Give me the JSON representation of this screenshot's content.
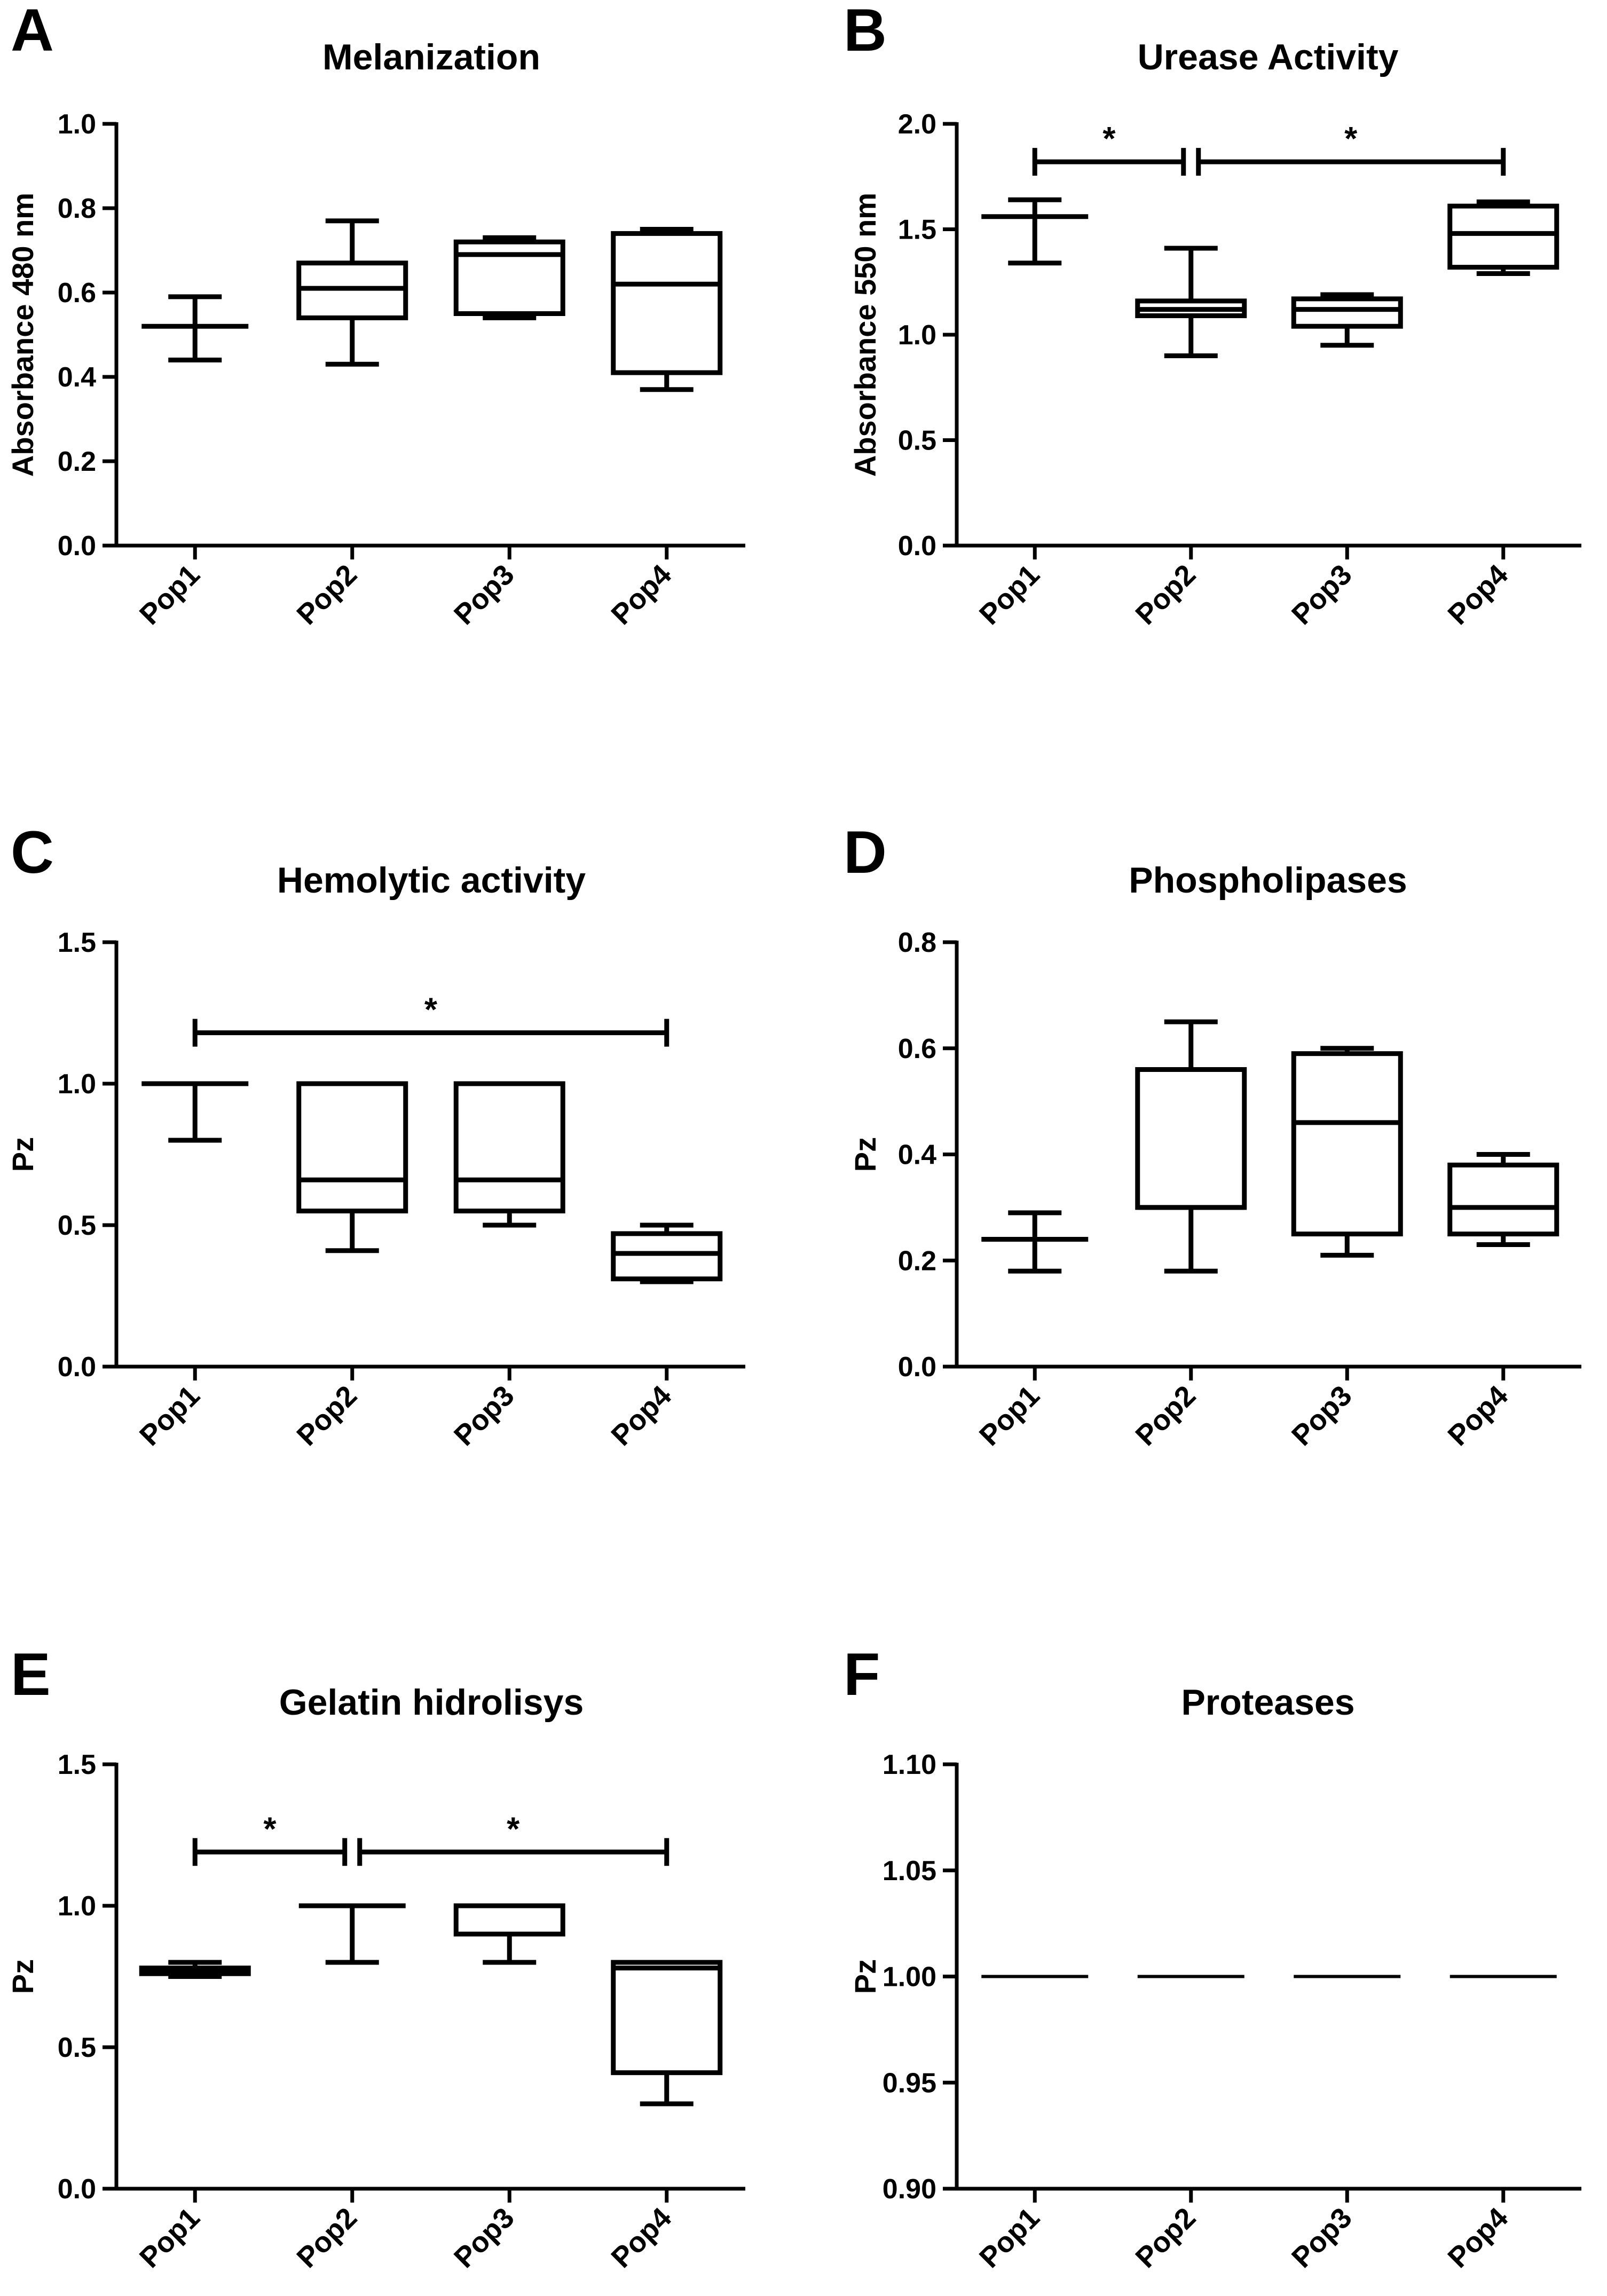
{
  "chart_data": [
    {
      "panel": "A",
      "type": "box",
      "title": "Melanization",
      "ylabel": "Absorbance 480 nm",
      "xlabel": "",
      "ylim": [
        0,
        1.0
      ],
      "yticks": [
        0.0,
        0.2,
        0.4,
        0.6,
        0.8,
        1.0
      ],
      "ytick_labels": [
        "0.0",
        "0.2",
        "0.4",
        "0.6",
        "0.8",
        "1.0"
      ],
      "categories": [
        "Pop1",
        "Pop2",
        "Pop3",
        "Pop4"
      ],
      "boxes": [
        {
          "min": 0.44,
          "q1": 0.52,
          "median": 0.52,
          "q3": 0.52,
          "max": 0.59
        },
        {
          "min": 0.43,
          "q1": 0.54,
          "median": 0.61,
          "q3": 0.67,
          "max": 0.77
        },
        {
          "min": 0.54,
          "q1": 0.55,
          "median": 0.69,
          "q3": 0.72,
          "max": 0.73
        },
        {
          "min": 0.37,
          "q1": 0.41,
          "median": 0.62,
          "q3": 0.74,
          "max": 0.75
        }
      ],
      "significance": []
    },
    {
      "panel": "B",
      "type": "box",
      "title": "Urease Activity",
      "ylabel": "Absorbance 550 nm",
      "xlabel": "",
      "ylim": [
        0,
        2.0
      ],
      "yticks": [
        0.0,
        0.5,
        1.0,
        1.5,
        2.0
      ],
      "ytick_labels": [
        "0.0",
        "0.5",
        "1.0",
        "1.5",
        "2.0"
      ],
      "categories": [
        "Pop1",
        "Pop2",
        "Pop3",
        "Pop4"
      ],
      "boxes": [
        {
          "min": 1.34,
          "q1": 1.56,
          "median": 1.56,
          "q3": 1.56,
          "max": 1.64
        },
        {
          "min": 0.9,
          "q1": 1.09,
          "median": 1.12,
          "q3": 1.16,
          "max": 1.41
        },
        {
          "min": 0.95,
          "q1": 1.04,
          "median": 1.12,
          "q3": 1.17,
          "max": 1.19
        },
        {
          "min": 1.29,
          "q1": 1.32,
          "median": 1.48,
          "q3": 1.61,
          "max": 1.63
        }
      ],
      "significance": [
        {
          "from": 0,
          "to": 1,
          "y": 1.82,
          "label": "*",
          "side": "left"
        },
        {
          "from": 1,
          "to": 3,
          "y": 1.82,
          "label": "*",
          "side": "right"
        }
      ]
    },
    {
      "panel": "C",
      "type": "box",
      "title": "Hemolytic activity",
      "ylabel": "Pz",
      "xlabel": "",
      "ylim": [
        0,
        1.5
      ],
      "yticks": [
        0.0,
        0.5,
        1.0,
        1.5
      ],
      "ytick_labels": [
        "0.0",
        "0.5",
        "1.0",
        "1.5"
      ],
      "categories": [
        "Pop1",
        "Pop2",
        "Pop3",
        "Pop4"
      ],
      "boxes": [
        {
          "min": 0.8,
          "q1": 1.0,
          "median": 1.0,
          "q3": 1.0,
          "max": 1.0
        },
        {
          "min": 0.41,
          "q1": 0.55,
          "median": 0.66,
          "q3": 1.0,
          "max": 1.0
        },
        {
          "min": 0.5,
          "q1": 0.55,
          "median": 0.66,
          "q3": 1.0,
          "max": 1.0
        },
        {
          "min": 0.3,
          "q1": 0.31,
          "median": 0.4,
          "q3": 0.47,
          "max": 0.5
        }
      ],
      "significance": [
        {
          "from": 0,
          "to": 3,
          "y": 1.18,
          "label": "*",
          "side": "full"
        }
      ]
    },
    {
      "panel": "D",
      "type": "box",
      "title": "Phospholipases",
      "ylabel": "Pz",
      "xlabel": "",
      "ylim": [
        0,
        0.8
      ],
      "yticks": [
        0.0,
        0.2,
        0.4,
        0.6,
        0.8
      ],
      "ytick_labels": [
        "0.0",
        "0.2",
        "0.4",
        "0.6",
        "0.8"
      ],
      "categories": [
        "Pop1",
        "Pop2",
        "Pop3",
        "Pop4"
      ],
      "boxes": [
        {
          "min": 0.18,
          "q1": 0.24,
          "median": 0.24,
          "q3": 0.24,
          "max": 0.29
        },
        {
          "min": 0.18,
          "q1": 0.3,
          "median": 0.3,
          "q3": 0.56,
          "max": 0.65
        },
        {
          "min": 0.21,
          "q1": 0.25,
          "median": 0.46,
          "q3": 0.59,
          "max": 0.6
        },
        {
          "min": 0.23,
          "q1": 0.25,
          "median": 0.3,
          "q3": 0.38,
          "max": 0.4
        }
      ],
      "significance": []
    },
    {
      "panel": "E",
      "type": "box",
      "title": "Gelatin hidrolisys",
      "ylabel": "Pz",
      "xlabel": "",
      "ylim": [
        0,
        1.5
      ],
      "yticks": [
        0.0,
        0.5,
        1.0,
        1.5
      ],
      "ytick_labels": [
        "0.0",
        "0.5",
        "1.0",
        "1.5"
      ],
      "categories": [
        "Pop1",
        "Pop2",
        "Pop3",
        "Pop4"
      ],
      "boxes": [
        {
          "min": 0.75,
          "q1": 0.76,
          "median": 0.77,
          "q3": 0.78,
          "max": 0.8
        },
        {
          "min": 0.8,
          "q1": 1.0,
          "median": 1.0,
          "q3": 1.0,
          "max": 1.0
        },
        {
          "min": 0.8,
          "q1": 0.9,
          "median": 1.0,
          "q3": 1.0,
          "max": 1.0
        },
        {
          "min": 0.3,
          "q1": 0.41,
          "median": 0.78,
          "q3": 0.8,
          "max": 0.8
        }
      ],
      "significance": [
        {
          "from": 0,
          "to": 1,
          "y": 1.19,
          "label": "*",
          "side": "left"
        },
        {
          "from": 1,
          "to": 3,
          "y": 1.19,
          "label": "*",
          "side": "right"
        }
      ]
    },
    {
      "panel": "F",
      "type": "box",
      "title": "Proteases",
      "ylabel": "Pz",
      "xlabel": "",
      "ylim": [
        0.9,
        1.1
      ],
      "yticks": [
        0.9,
        0.95,
        1.0,
        1.05,
        1.1
      ],
      "ytick_labels": [
        "0.90",
        "0.95",
        "1.00",
        "1.05",
        "1.10"
      ],
      "categories": [
        "Pop1",
        "Pop2",
        "Pop3",
        "Pop4"
      ],
      "boxes": [
        {
          "min": 1.0,
          "q1": 1.0,
          "median": 1.0,
          "q3": 1.0,
          "max": 1.0
        },
        {
          "min": 1.0,
          "q1": 1.0,
          "median": 1.0,
          "q3": 1.0,
          "max": 1.0
        },
        {
          "min": 1.0,
          "q1": 1.0,
          "median": 1.0,
          "q3": 1.0,
          "max": 1.0
        },
        {
          "min": 1.0,
          "q1": 1.0,
          "median": 1.0,
          "q3": 1.0,
          "max": 1.0
        }
      ],
      "significance": []
    }
  ]
}
